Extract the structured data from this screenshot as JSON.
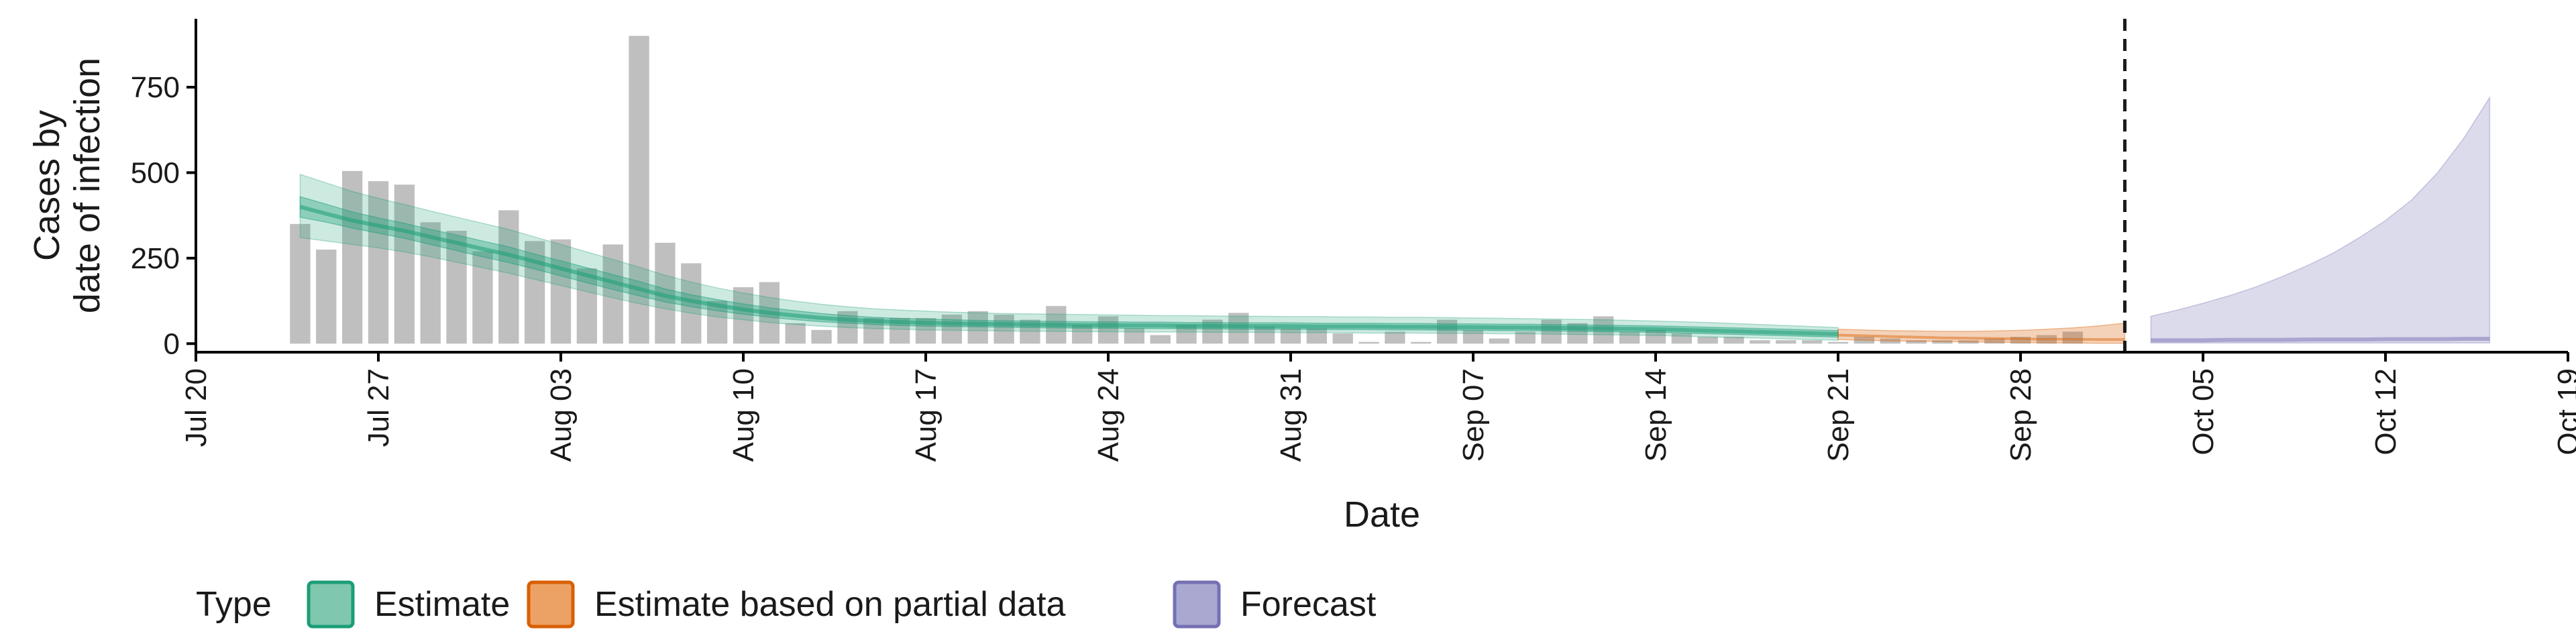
{
  "chart_data": {
    "type": "bar",
    "xlabel": "Date",
    "ylabel_lines": [
      "Cases by",
      "date of infection"
    ],
    "x_start": "2020-07-20",
    "x_end": "2020-10-19",
    "ylim": [
      -25,
      950
    ],
    "y_ticks": [
      0,
      250,
      500,
      750
    ],
    "x_ticks": [
      {
        "date": "2020-07-20",
        "label": "Jul 20"
      },
      {
        "date": "2020-07-27",
        "label": "Jul 27"
      },
      {
        "date": "2020-08-03",
        "label": "Aug 03"
      },
      {
        "date": "2020-08-10",
        "label": "Aug 10"
      },
      {
        "date": "2020-08-17",
        "label": "Aug 17"
      },
      {
        "date": "2020-08-24",
        "label": "Aug 24"
      },
      {
        "date": "2020-08-31",
        "label": "Aug 31"
      },
      {
        "date": "2020-09-07",
        "label": "Sep 07"
      },
      {
        "date": "2020-09-14",
        "label": "Sep 14"
      },
      {
        "date": "2020-09-21",
        "label": "Sep 21"
      },
      {
        "date": "2020-09-28",
        "label": "Sep 28"
      },
      {
        "date": "2020-10-05",
        "label": "Oct 05"
      },
      {
        "date": "2020-10-12",
        "label": "Oct 12"
      },
      {
        "date": "2020-10-19",
        "label": "Oct 19"
      }
    ],
    "bars": {
      "start_date": "2020-07-24",
      "color": "#bfbfbf",
      "values": [
        350,
        275,
        505,
        475,
        465,
        355,
        330,
        270,
        390,
        300,
        305,
        220,
        290,
        900,
        295,
        235,
        125,
        165,
        180,
        60,
        40,
        95,
        75,
        75,
        75,
        85,
        95,
        85,
        70,
        110,
        55,
        80,
        45,
        25,
        55,
        70,
        90,
        50,
        45,
        45,
        30,
        5,
        35,
        5,
        70,
        40,
        15,
        35,
        70,
        60,
        80,
        35,
        40,
        30,
        20,
        20,
        10,
        10,
        10,
        5,
        20,
        15,
        10,
        10,
        10,
        15,
        20,
        25,
        35
      ]
    },
    "estimate": {
      "start_date": "2020-07-24",
      "end_date": "2020-09-21",
      "color": "#1b9e77",
      "median": [
        400,
        380,
        360,
        345,
        330,
        312,
        295,
        277,
        260,
        240,
        220,
        200,
        180,
        160,
        140,
        125,
        112,
        100,
        90,
        82,
        75,
        70,
        66,
        63,
        61,
        59,
        58,
        57,
        56,
        55,
        54,
        54,
        53,
        53,
        52,
        52,
        51,
        51,
        51,
        50,
        50,
        50,
        49,
        49,
        48,
        48,
        47,
        47,
        46,
        45,
        44,
        43,
        42,
        40,
        38,
        36,
        34,
        32,
        30,
        28
      ],
      "inner_lower": [
        370,
        355,
        338,
        323,
        308,
        290,
        272,
        254,
        237,
        218,
        198,
        178,
        158,
        140,
        122,
        108,
        96,
        86,
        77,
        70,
        64,
        60,
        56,
        53,
        51,
        50,
        49,
        48,
        47,
        46,
        45,
        45,
        44,
        44,
        43,
        43,
        42,
        42,
        42,
        41,
        41,
        41,
        40,
        40,
        39,
        39,
        38,
        38,
        37,
        36,
        35,
        34,
        33,
        31,
        29,
        27,
        25,
        23,
        21,
        19
      ],
      "inner_upper": [
        430,
        408,
        385,
        368,
        352,
        334,
        318,
        300,
        283,
        262,
        242,
        222,
        202,
        182,
        160,
        143,
        129,
        116,
        105,
        96,
        88,
        82,
        77,
        74,
        72,
        70,
        68,
        67,
        66,
        65,
        64,
        64,
        63,
        63,
        62,
        62,
        61,
        61,
        61,
        60,
        60,
        60,
        59,
        59,
        58,
        58,
        57,
        57,
        56,
        55,
        54,
        53,
        52,
        50,
        48,
        46,
        44,
        42,
        40,
        38
      ],
      "outer_lower": [
        310,
        300,
        290,
        280,
        268,
        254,
        238,
        222,
        206,
        188,
        170,
        152,
        134,
        117,
        102,
        89,
        78,
        70,
        62,
        56,
        51,
        47,
        44,
        42,
        40,
        39,
        38,
        37,
        36,
        36,
        35,
        35,
        34,
        34,
        34,
        33,
        33,
        33,
        32,
        32,
        32,
        31,
        31,
        31,
        30,
        30,
        29,
        29,
        28,
        27,
        26,
        25,
        24,
        22,
        20,
        18,
        16,
        14,
        12,
        10
      ],
      "outer_upper": [
        495,
        470,
        445,
        425,
        407,
        388,
        370,
        352,
        334,
        312,
        290,
        268,
        246,
        224,
        200,
        180,
        163,
        148,
        135,
        124,
        115,
        108,
        102,
        98,
        95,
        92,
        90,
        88,
        87,
        86,
        85,
        84,
        83,
        82,
        82,
        81,
        80,
        80,
        79,
        79,
        78,
        78,
        77,
        77,
        76,
        75,
        74,
        73,
        72,
        71,
        70,
        68,
        66,
        64,
        62,
        59,
        56,
        53,
        50,
        47
      ]
    },
    "partial": {
      "start_date": "2020-09-21",
      "end_date": "2020-10-02",
      "color": "#d95f02",
      "median": [
        25,
        23,
        21,
        19,
        17,
        16,
        15,
        14,
        13,
        13,
        12,
        12
      ],
      "lower": [
        12,
        10,
        8,
        7,
        6,
        5,
        4,
        3,
        2,
        2,
        1,
        1
      ],
      "upper": [
        42,
        40,
        38,
        37,
        36,
        36,
        37,
        39,
        42,
        46,
        52,
        60
      ]
    },
    "forecast": {
      "start_date": "2020-10-03",
      "end_date": "2020-10-16",
      "color": "#7570b3",
      "median": [
        10,
        10,
        10,
        11,
        11,
        11,
        12,
        12,
        12,
        13,
        13,
        13,
        14,
        14
      ],
      "lower": [
        2,
        2,
        2,
        2,
        2,
        2,
        2,
        2,
        2,
        2,
        2,
        2,
        2,
        2
      ],
      "upper": [
        80,
        98,
        118,
        140,
        165,
        195,
        228,
        265,
        310,
        360,
        420,
        500,
        600,
        720
      ]
    },
    "reference_line_date": "2020-10-02",
    "legend": {
      "title": "Type",
      "placement": "bottom",
      "items": [
        {
          "label": "Estimate",
          "fill": "#7fc7ae",
          "stroke": "#1b9e77"
        },
        {
          "label": "Estimate based on partial data",
          "fill": "#eca264",
          "stroke": "#d95f02"
        },
        {
          "label": "Forecast",
          "fill": "#aaa7d1",
          "stroke": "#7570b3"
        }
      ]
    }
  }
}
